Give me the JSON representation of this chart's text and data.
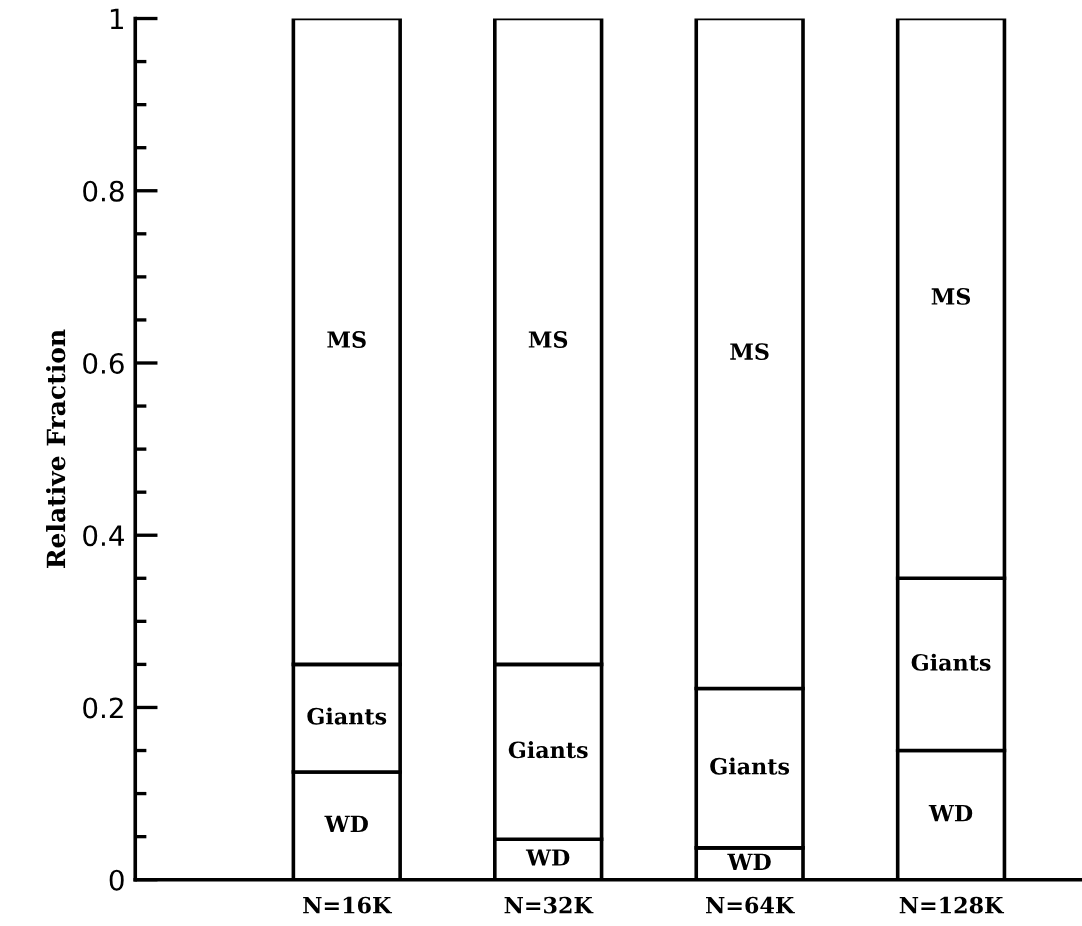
{
  "chart_data": {
    "type": "bar",
    "stacked": true,
    "ylabel": "Relative Fraction",
    "categories": [
      "N=16K",
      "N=32K",
      "N=64K",
      "N=128K"
    ],
    "series": [
      {
        "name": "WD",
        "color": "#ffffff",
        "values": [
          0.125,
          0.047,
          0.037,
          0.15
        ]
      },
      {
        "name": "Giants",
        "color": "#ffffff",
        "values": [
          0.125,
          0.203,
          0.185,
          0.2
        ]
      },
      {
        "name": "MS",
        "color": "#ffffff",
        "values": [
          0.75,
          0.75,
          0.778,
          0.65
        ]
      }
    ],
    "ylim": [
      0,
      1
    ],
    "yticks": [
      0,
      0.2,
      0.4,
      0.6,
      0.8,
      1
    ],
    "grid": false,
    "legend": false
  }
}
